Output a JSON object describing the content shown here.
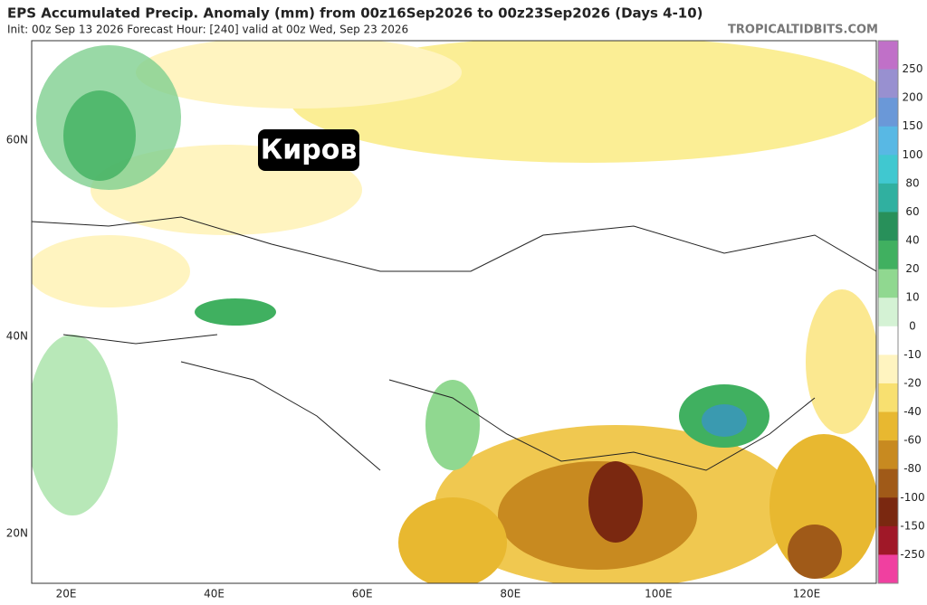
{
  "header": {
    "title": "EPS Accumulated Precip. Anomaly (mm) from 00z16Sep2026 to 00z23Sep2026 (Days 4-10)",
    "subtitle": "Init: 00z Sep 13 2026   Forecast Hour: [240]   valid at 00z Wed, Sep 23 2026",
    "source": "TROPICALTIDBITS.COM"
  },
  "map": {
    "city_label": "Киров",
    "lat_labels": [
      "60N",
      "40N",
      "20N"
    ],
    "lon_labels": [
      "20E",
      "40E",
      "60E",
      "80E",
      "100E",
      "120E"
    ]
  },
  "colorbar": {
    "labels": [
      "250",
      "200",
      "150",
      "100",
      "80",
      "60",
      "40",
      "20",
      "10",
      "0",
      "-10",
      "-20",
      "-40",
      "-60",
      "-80",
      "-100",
      "-150",
      "-250"
    ],
    "colors": [
      "#c070c8",
      "#9890d0",
      "#6a98d8",
      "#58b8e4",
      "#40c8d0",
      "#30b0a0",
      "#28905a",
      "#40b060",
      "#90d890",
      "#d4f2d4",
      "#ffffff",
      "#fff4c0",
      "#f8e070",
      "#e8b830",
      "#c88a20",
      "#a05a18",
      "#7a2810",
      "#a01828",
      "#f040a0"
    ]
  }
}
